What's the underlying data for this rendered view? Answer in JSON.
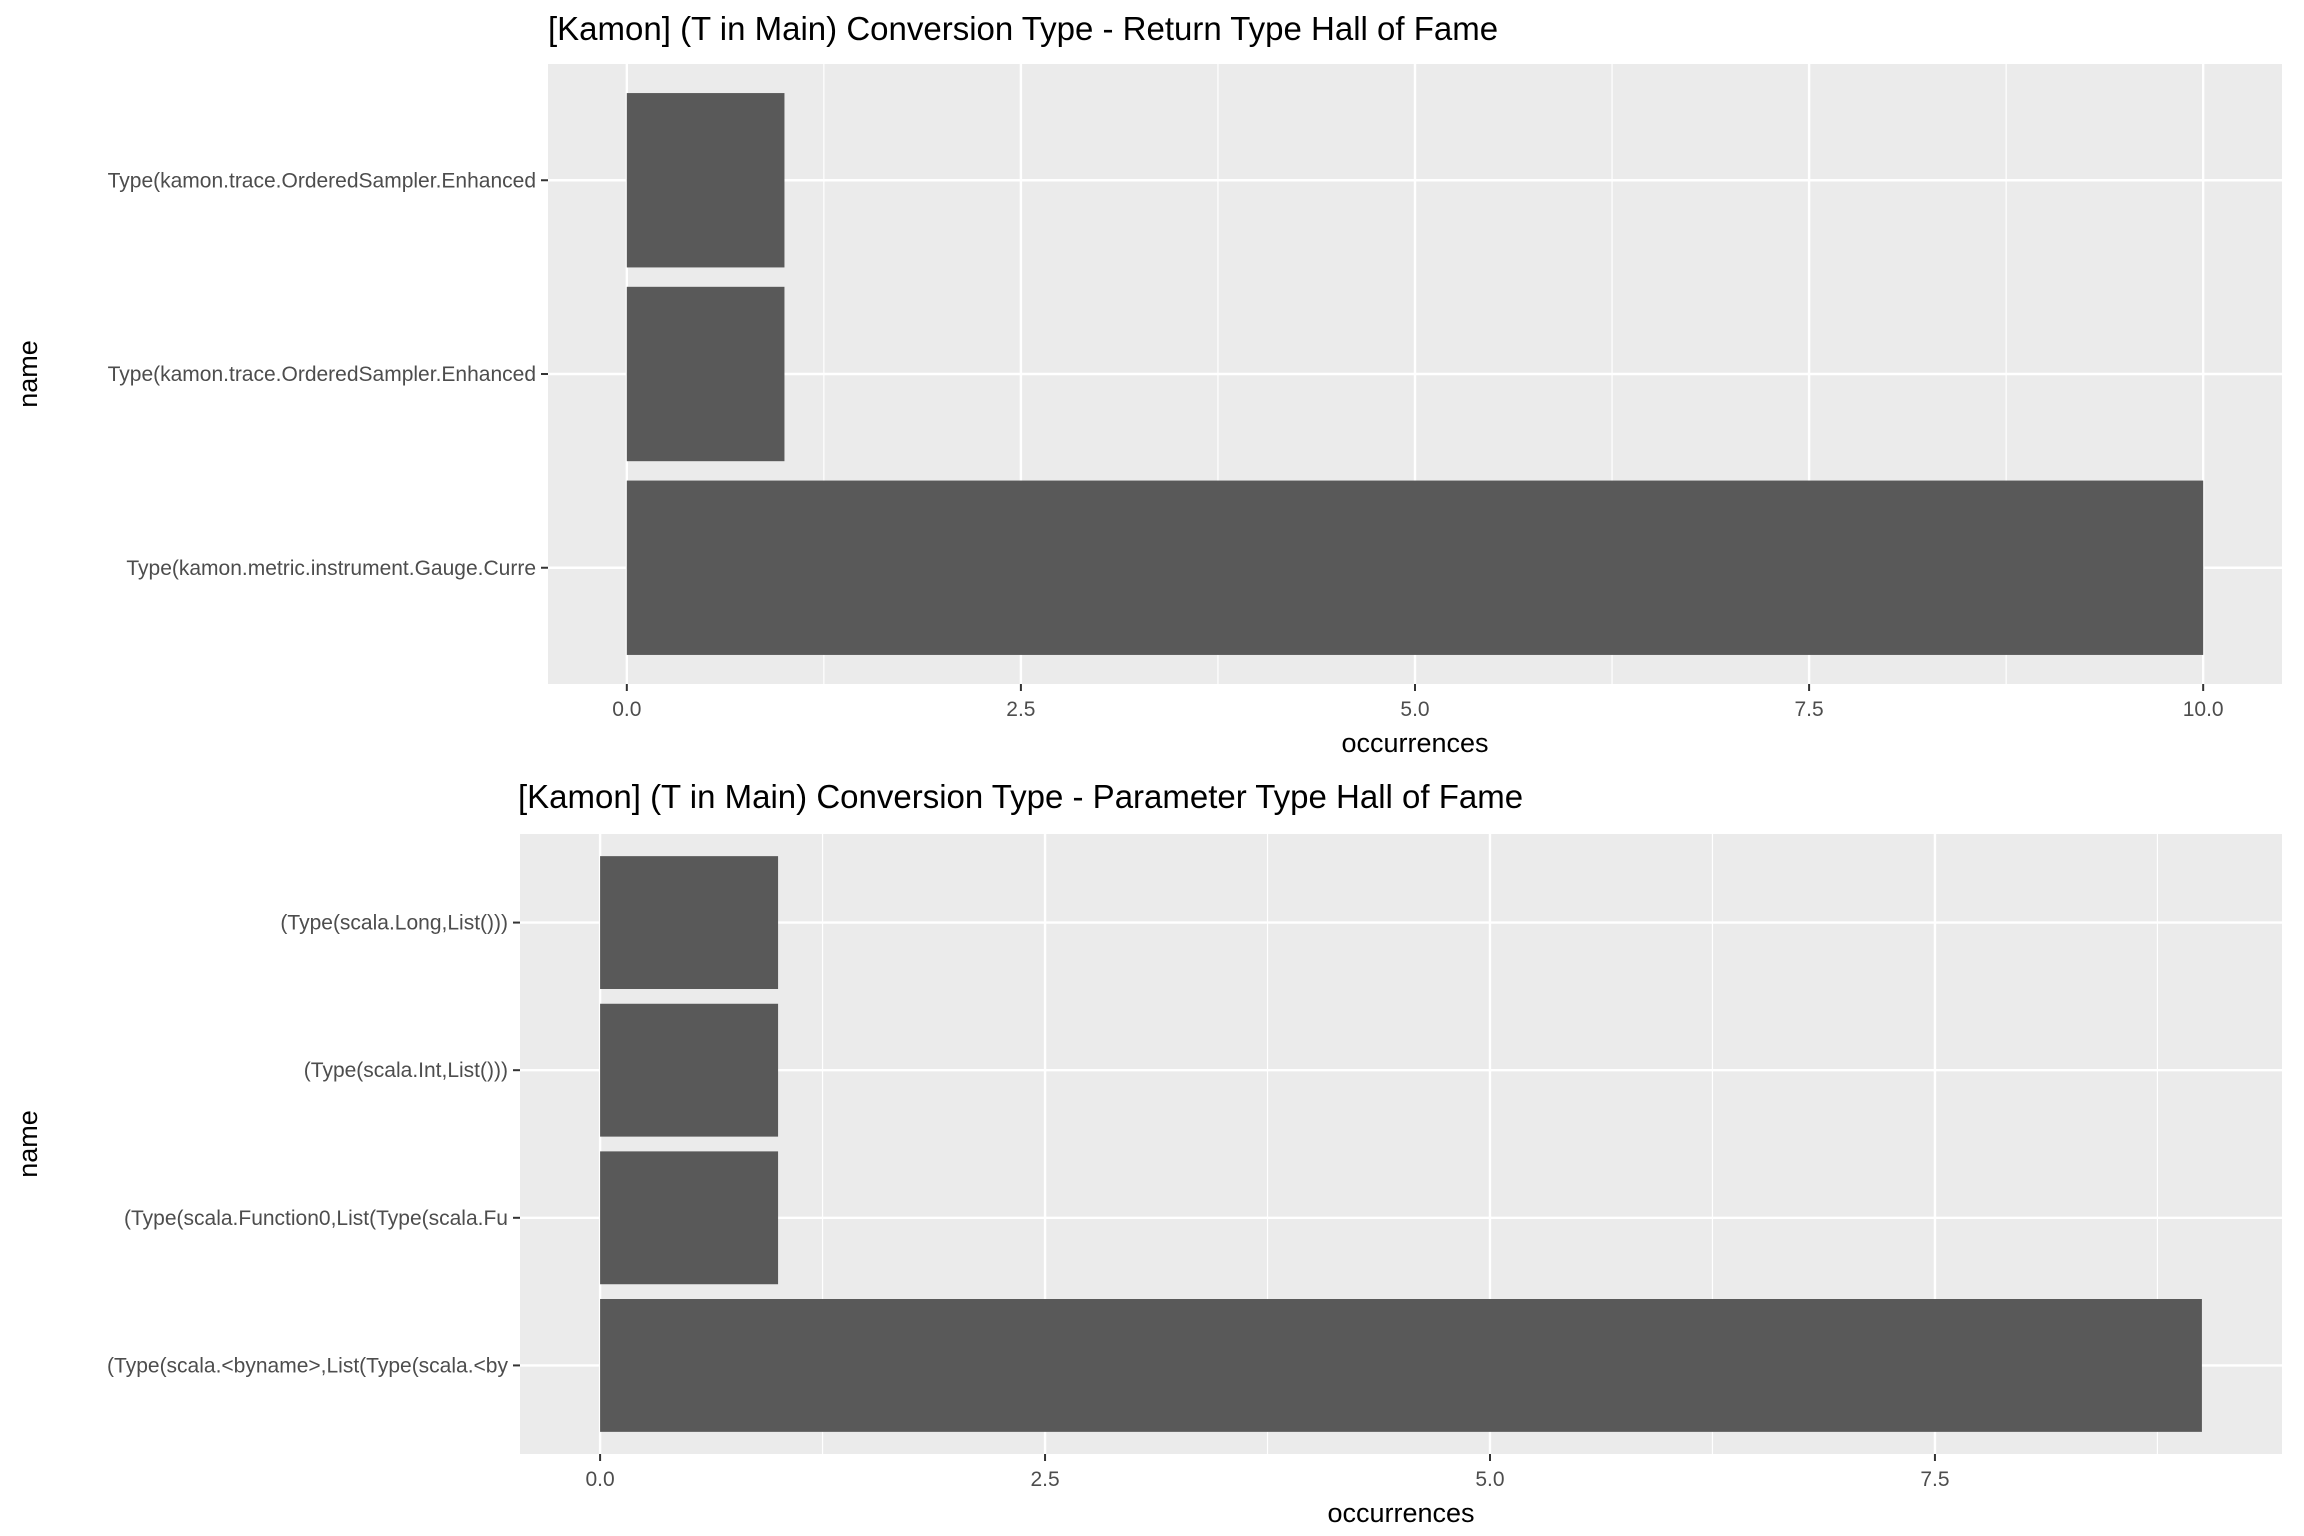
{
  "chart_data": [
    {
      "type": "bar",
      "orientation": "horizontal",
      "title": "[Kamon] (T in Main) Conversion Type - Return Type Hall of Fame",
      "xlabel": "occurrences",
      "ylabel": "name",
      "categories": [
        "Type(kamon.metric.instrument.Gauge.Curre",
        "Type(kamon.trace.OrderedSampler.Enhanced",
        "Type(kamon.trace.OrderedSampler.Enhanced"
      ],
      "values": [
        10,
        1,
        1
      ],
      "xlim": [
        -0.5,
        10.5
      ],
      "xticks": [
        0,
        2.5,
        5,
        7.5,
        10
      ],
      "xtick_labels": [
        "0.0",
        "2.5",
        "5.0",
        "7.5",
        "10.0"
      ],
      "grid": true,
      "legend": "none",
      "colors": {
        "bar": "#595959",
        "panel": "#ebebeb",
        "grid": "#ffffff"
      }
    },
    {
      "type": "bar",
      "orientation": "horizontal",
      "title": "[Kamon] (T in Main) Conversion Type - Parameter Type Hall of Fame",
      "xlabel": "occurrences",
      "ylabel": "name",
      "categories": [
        "(Type(scala.<byname>,List(Type(scala.<by",
        "(Type(scala.Function0,List(Type(scala.Fu",
        "(Type(scala.Int,List()))",
        "(Type(scala.Long,List()))"
      ],
      "values": [
        9,
        1,
        1,
        1
      ],
      "xlim": [
        -0.45,
        9.45
      ],
      "xticks": [
        0,
        2.5,
        5,
        7.5
      ],
      "xtick_labels": [
        "0.0",
        "2.5",
        "5.0",
        "7.5"
      ],
      "grid": true,
      "legend": "none",
      "colors": {
        "bar": "#595959",
        "panel": "#ebebeb",
        "grid": "#ffffff"
      }
    }
  ]
}
